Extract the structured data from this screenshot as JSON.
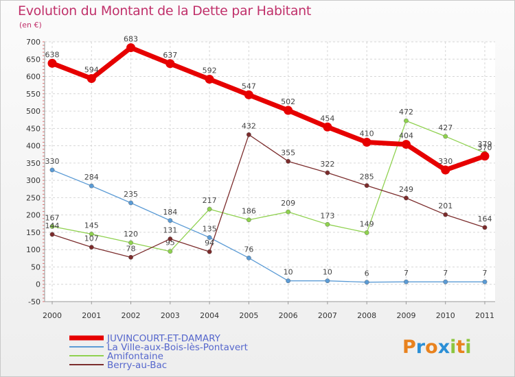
{
  "title": "Evolution du Montant de la Dette par Habitant",
  "subtitle": "(en €)",
  "logo_letters": [
    {
      "ch": "P",
      "color": "#e8821e"
    },
    {
      "ch": "r",
      "color": "#2b8fd6"
    },
    {
      "ch": "o",
      "color": "#e8821e"
    },
    {
      "ch": "x",
      "color": "#2b8fd6"
    },
    {
      "ch": "i",
      "color": "#8cc63f"
    },
    {
      "ch": "t",
      "color": "#e8821e"
    },
    {
      "ch": "i",
      "color": "#8cc63f"
    }
  ],
  "chart_data": {
    "type": "line",
    "title": "Evolution du Montant de la Dette par Habitant",
    "ylabel": "(en €)",
    "ylim": [
      -50,
      700
    ],
    "yticks": [
      -50,
      0,
      50,
      100,
      150,
      200,
      250,
      300,
      350,
      400,
      450,
      500,
      550,
      600,
      650,
      700
    ],
    "grid": true,
    "legend_position": "bottom-left",
    "x": [
      "2000",
      "2001",
      "2002",
      "2003",
      "2004",
      "2005",
      "2006",
      "2007",
      "2008",
      "2009",
      "2010",
      "2011"
    ],
    "series": [
      {
        "name": "JUVINCOURT-ET-DAMARY",
        "color": "#e60000",
        "width": 7,
        "values": [
          638,
          594,
          683,
          637,
          592,
          547,
          502,
          454,
          410,
          404,
          330,
          370
        ]
      },
      {
        "name": "La Ville-aux-Bois-lès-Pontavert",
        "color": "#5b9bd5",
        "width": 1.3,
        "values": [
          330,
          284,
          235,
          184,
          135,
          76,
          10,
          10,
          6,
          7,
          7,
          7
        ]
      },
      {
        "name": "Amifontaine",
        "color": "#8fd14f",
        "width": 1.3,
        "values": [
          167,
          145,
          120,
          95,
          217,
          186,
          209,
          173,
          149,
          472,
          427,
          379
        ]
      },
      {
        "name": "Berry-au-Bac",
        "color": "#7b2c2c",
        "width": 1.3,
        "values": [
          144,
          107,
          78,
          131,
          94,
          432,
          355,
          322,
          285,
          249,
          201,
          164
        ]
      }
    ]
  }
}
